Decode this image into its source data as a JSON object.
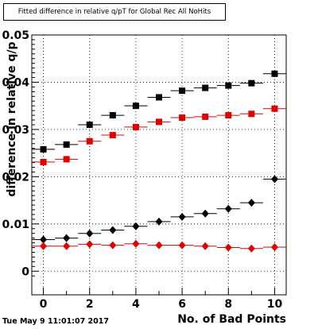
{
  "chart_data": {
    "type": "scatter",
    "title": "Fitted difference in relative q/pT for Global Rec All NoHits",
    "xlabel": "No. of Bad Points",
    "ylabel": "difference in relative q/p",
    "xlim": [
      -0.5,
      10.5
    ],
    "ylim": [
      -0.005,
      0.05
    ],
    "xticks": [
      "0",
      "2",
      "4",
      "6",
      "8",
      "10"
    ],
    "yticks": [
      "0",
      "0.01",
      "0.02",
      "0.03",
      "0.04",
      "0.05"
    ],
    "grid": true,
    "x": [
      0,
      1,
      2,
      3,
      4,
      5,
      6,
      7,
      8,
      9,
      10
    ],
    "series": [
      {
        "marker": "square",
        "color": "#000000",
        "values": [
          0.0258,
          0.0268,
          0.031,
          0.033,
          0.035,
          0.0368,
          0.0382,
          0.0388,
          0.0393,
          0.0398,
          0.0418
        ]
      },
      {
        "marker": "square",
        "color": "#e00000",
        "values": [
          0.0231,
          0.0237,
          0.0275,
          0.0288,
          0.0305,
          0.0316,
          0.0325,
          0.0327,
          0.033,
          0.0333,
          0.0344
        ]
      },
      {
        "marker": "diamond",
        "color": "#000000",
        "values": [
          0.0067,
          0.007,
          0.008,
          0.0087,
          0.0095,
          0.0105,
          0.0115,
          0.0122,
          0.0132,
          0.0145,
          0.0195
        ]
      },
      {
        "marker": "diamond",
        "color": "#e00000",
        "values": [
          0.0053,
          0.0053,
          0.0057,
          0.0055,
          0.0058,
          0.0055,
          0.0055,
          0.0053,
          0.005,
          0.0048,
          0.0051
        ]
      }
    ]
  },
  "footer": {
    "timestamp": "Tue May  9 11:01:07 2017"
  }
}
